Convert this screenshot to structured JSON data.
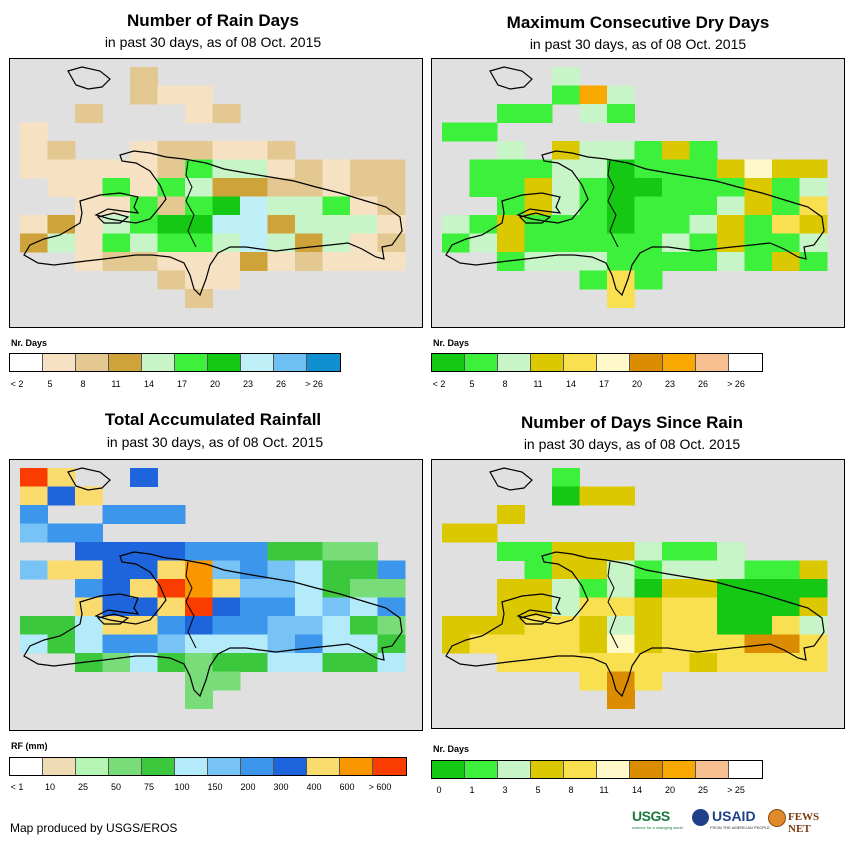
{
  "panels": [
    {
      "id": "rain-days",
      "title": "Number of Rain Days",
      "subtitle": "in past 30 days, as of 08 Oct. 2015",
      "legend_title": "Nr. Days",
      "legend_colors": [
        "#ffffff",
        "#f6e2c2",
        "#e4c891",
        "#cea43a",
        "#c8f5c8",
        "#3cf03c",
        "#14c814",
        "#bff0f8",
        "#6ec0f4",
        "#1090d0"
      ],
      "legend_ticks": [
        "< 2",
        "5",
        "8",
        "11",
        "14",
        "17",
        "20",
        "23",
        "26",
        "> 26"
      ],
      "grid": [
        "....C.........",
        "....CBB.......",
        "..C...BC......",
        "B.............",
        "BC..BCCBBC....",
        "BBBBBCFEEBCBCC",
        ".BBFBFEDDCCBCC",
        "..BBFCFGHEEFBC",
        "BDBEFGGHHDEEEB",
        "DEBFEFFEHEDEBC",
        "..BCCBBBDBCBBB",
        ".....CBB......",
        "......C......."
      ]
    },
    {
      "id": "max-dry-days",
      "title": "Maximum Consecutive Dry Days",
      "subtitle": "in past 30 days, as of 08 Oct. 2015",
      "legend_title": "Nr. Days",
      "legend_colors": [
        "#14c814",
        "#3cf03c",
        "#c8f5c8",
        "#dcc800",
        "#f8e050",
        "#fff8c8",
        "#dc8c00",
        "#f8a800",
        "#f8c090",
        "#ffffff"
      ],
      "legend_ticks": [
        "< 2",
        "5",
        "8",
        "11",
        "14",
        "17",
        "20",
        "23",
        "26",
        "> 26"
      ],
      "grid": [
        "....C.........",
        "....BHC.......",
        "..BB.CB.......",
        "BB............",
        "..C.DCCBDB....",
        ".BBBCCABBBDFDD",
        ".BBDCBAABBBDBC",
        "..BDCBABBBCDBE",
        "CBDBBBABBCDBED",
        "BCDBBBBBCBDBBC",
        "..BCCCBBBBCBDB",
        ".....BEB......",
        "......E......."
      ]
    },
    {
      "id": "total-rainfall",
      "title": "Total Accumulated Rainfall",
      "subtitle": "in past 30 days, as of 08 Oct. 2015",
      "legend_title": "RF (mm)",
      "legend_colors": [
        "#ffffff",
        "#f0dcb4",
        "#b4f5b4",
        "#78dc78",
        "#3cc83c",
        "#b4ebfa",
        "#78c3f5",
        "#3c96eb",
        "#1e64dc",
        "#fadc6e",
        "#fa9600",
        "#fa3c00"
      ],
      "legend_ticks": [
        "< 1",
        "10",
        "25",
        "50",
        "75",
        "100",
        "150",
        "200",
        "300",
        "400",
        "600",
        "> 600"
      ],
      "grid": [
        "LJ..I.........",
        "JIJ...........",
        "H..HHH........",
        "GHH...........",
        "..IIIIHHHEEDD.",
        "GJJIIJKGHGFEEH",
        "..HIJLKJGGFEDD",
        "..JIIJLIHHFGFH",
        "EEFJJHIHHGGFED",
        "FEFHHGFFFGHFFE",
        "..EDFEDEEFFEEF",
        "......DD......",
        "......D......."
      ]
    },
    {
      "id": "days-since-rain",
      "title": "Number of Days Since Rain",
      "subtitle": "in past 30 days, as of 08 Oct. 2015",
      "legend_title": "Nr. Days",
      "legend_colors": [
        "#14c814",
        "#3cf03c",
        "#c8f5c8",
        "#dcc800",
        "#f8e050",
        "#fff8c8",
        "#dc8c00",
        "#f8a800",
        "#f8c090",
        "#ffffff"
      ],
      "legend_ticks": [
        "0",
        "1",
        "3",
        "5",
        "8",
        "11",
        "14",
        "20",
        "25",
        "> 25"
      ],
      "grid": [
        "....B.........",
        "....ADD.......",
        "..D...........",
        "DD............",
        "..BBDDDCBBC...",
        "...BDDCBCCCBBD",
        "..DDCBCADDAAAA",
        "..DDCEEDEEAAAD",
        "DDDEEDCDEEAAEC",
        "DEEEEDFDEEEGGE",
        "..EEEEEEEDEEEE",
        ".....EGE......",
        "......G......."
      ]
    }
  ],
  "footer": {
    "credit": "Map produced by USGS/EROS",
    "logo_usgs": "USGS",
    "logo_usgs_tagline": "science for a changing world",
    "logo_usaid": "USAID",
    "logo_usaid_tagline": "FROM THE AMERICAN PEOPLE",
    "logo_fews": "FEWS NET"
  }
}
